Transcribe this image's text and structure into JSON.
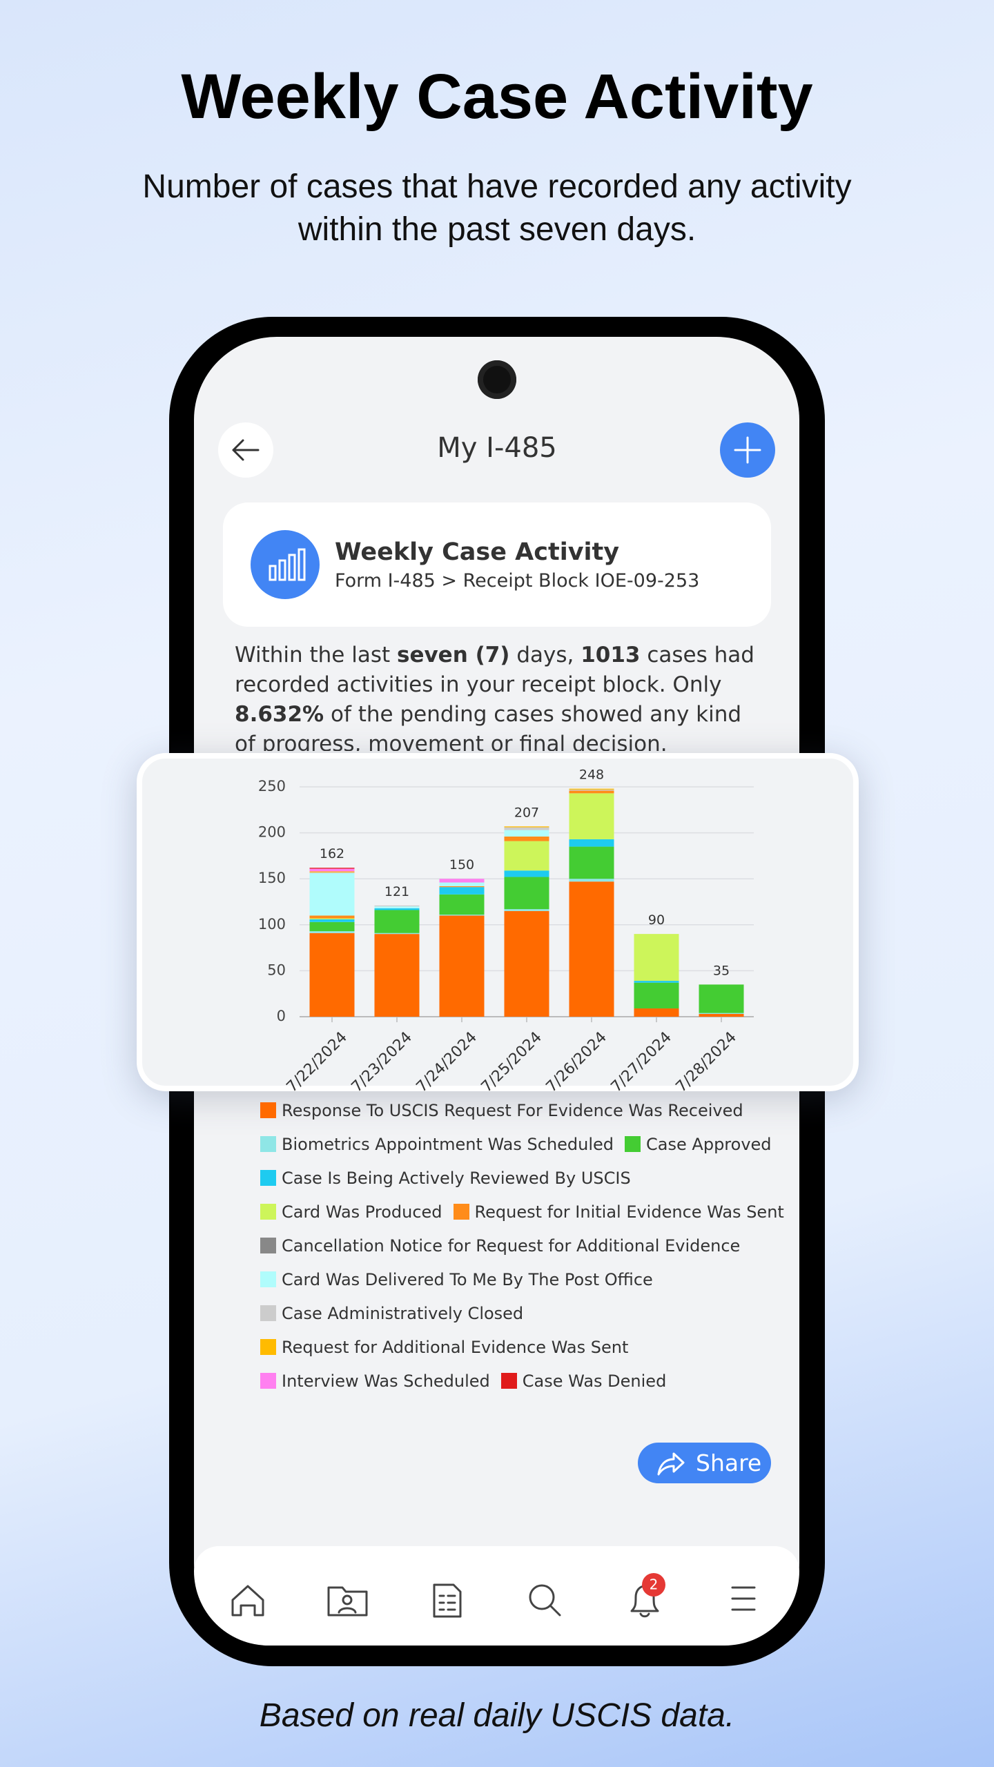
{
  "header": {
    "title": "Weekly Case Activity",
    "subtitle": "Number of cases that have recorded any activity within the past seven days."
  },
  "app": {
    "title": "My I-485",
    "card": {
      "title": "Weekly Case Activity",
      "subtitle": "Form I-485 > Receipt Block IOE-09-253"
    },
    "paragraph": [
      "Within the last ",
      "seven (7)",
      " days, ",
      "1013",
      " cases had recorded activities in your receipt block. Only ",
      "8.632%",
      " of the pending cases showed any kind of progress, movement or final decision."
    ],
    "share": "Share",
    "notification_badge": 2
  },
  "chart_data": {
    "type": "bar",
    "stacked": true,
    "grid": true,
    "legend": "bottom",
    "categories": [
      "7/22/2024",
      "7/23/2024",
      "7/24/2024",
      "7/25/2024",
      "7/26/2024",
      "7/27/2024",
      "7/28/2024"
    ],
    "totals": [
      162,
      121,
      150,
      207,
      248,
      90,
      35
    ],
    "ylim": [
      0,
      250
    ],
    "yticks": [
      0,
      50,
      100,
      150,
      200,
      250
    ],
    "series": [
      {
        "name": "Response To USCIS Request For Evidence Was Received",
        "color": "#ff6a00",
        "values": [
          91,
          90,
          110,
          115,
          147,
          9,
          3
        ]
      },
      {
        "name": "Biometrics Appointment Was Scheduled",
        "color": "#8fe6e6",
        "values": [
          2,
          1,
          1,
          2,
          3,
          0,
          1
        ]
      },
      {
        "name": "Case Approved",
        "color": "#44cc33",
        "values": [
          10,
          25,
          22,
          35,
          35,
          28,
          31
        ]
      },
      {
        "name": "Case Is Being Actively Reviewed By USCIS",
        "color": "#1ecbf0",
        "values": [
          3,
          2,
          8,
          7,
          8,
          2,
          0
        ]
      },
      {
        "name": "Card Was Produced",
        "color": "#cdf55a",
        "values": [
          1,
          0,
          0,
          32,
          50,
          51,
          0
        ]
      },
      {
        "name": "Request for Initial Evidence Was Sent",
        "color": "#ff8c1a",
        "values": [
          3,
          0,
          1,
          5,
          3,
          0,
          0
        ]
      },
      {
        "name": "Cancellation Notice for Request for Additional Evidence",
        "color": "#888888",
        "values": [
          0,
          0,
          0,
          0,
          0,
          0,
          0
        ]
      },
      {
        "name": "Card Was Delivered To Me By The Post Office",
        "color": "#b0fcfc",
        "values": [
          46,
          2,
          4,
          7,
          0,
          0,
          0
        ]
      },
      {
        "name": "Case Administratively Closed",
        "color": "#cccccc",
        "values": [
          1,
          1,
          0,
          3,
          1,
          0,
          0
        ]
      },
      {
        "name": "Request for Additional Evidence Was Sent",
        "color": "#ffbb00",
        "values": [
          1,
          0,
          0,
          1,
          1,
          0,
          0
        ]
      },
      {
        "name": "Interview Was Scheduled",
        "color": "#ff80f0",
        "values": [
          3,
          0,
          4,
          0,
          0,
          0,
          0
        ]
      },
      {
        "name": "Case Was Denied",
        "color": "#e01b1b",
        "values": [
          1,
          0,
          0,
          0,
          0,
          0,
          0
        ]
      }
    ]
  },
  "footer": "Based on real daily USCIS data."
}
